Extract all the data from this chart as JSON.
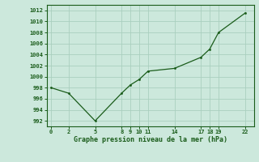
{
  "x": [
    0,
    2,
    5,
    8,
    9,
    10,
    11,
    14,
    17,
    18,
    19,
    22
  ],
  "y": [
    998,
    997,
    992,
    997,
    998.5,
    999.5,
    1001,
    1001.5,
    1003.5,
    1005,
    1008,
    1011.5
  ],
  "line_color": "#1a5c1a",
  "marker_color": "#1a5c1a",
  "bg_color": "#cce8dc",
  "grid_color": "#aacfbf",
  "xlabel": "Graphe pression niveau de la mer (hPa)",
  "xlabel_color": "#1a5c1a",
  "xticks": [
    0,
    2,
    5,
    8,
    9,
    10,
    11,
    14,
    17,
    18,
    19,
    22
  ],
  "yticks": [
    992,
    994,
    996,
    998,
    1000,
    1002,
    1004,
    1006,
    1008,
    1010,
    1012
  ],
  "ylim": [
    991,
    1013
  ],
  "xlim": [
    -0.5,
    23
  ]
}
